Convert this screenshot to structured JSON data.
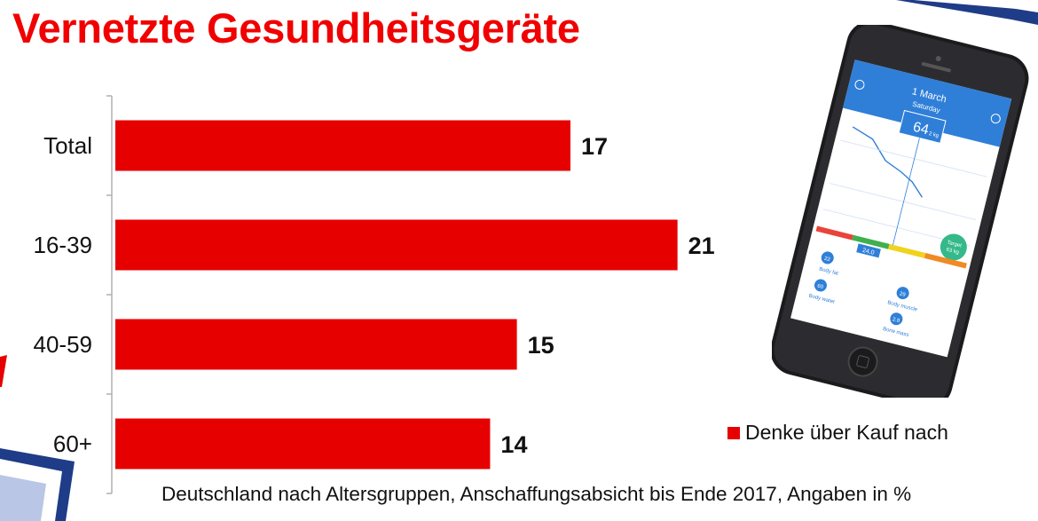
{
  "title": "Vernetzte Gesundheitsgeräte",
  "footnote": "Deutschland nach Altersgruppen, Anschaffungsabsicht bis Ende 2017, Angaben in %",
  "colors": {
    "title": "#f00000",
    "bar": "#e60000",
    "axis": "#b0b0b0"
  },
  "chart_data": {
    "type": "bar",
    "orientation": "horizontal",
    "categories": [
      "Total",
      "16-39",
      "40-59",
      "60+"
    ],
    "series": [
      {
        "name": "Denke über Kauf nach",
        "values": [
          17,
          21,
          15,
          14
        ]
      }
    ],
    "data_labels": [
      "17",
      "21",
      "15",
      "14"
    ],
    "xlim": [
      0,
      23
    ],
    "grid": false,
    "legend": "bottom-right"
  },
  "phone": {
    "date": "1 March",
    "weekday": "Saturday",
    "weight": "64",
    "weight_unit": "2 kg",
    "target_label": "Target",
    "target_value": "63 kg",
    "bmi_value": "24.0",
    "metrics": [
      {
        "label": "Body fat",
        "value": "22"
      },
      {
        "label": "Body water",
        "value": "60"
      },
      {
        "label": "Body muscle",
        "value": "29"
      },
      {
        "label": "Bone mass",
        "value": "2.8"
      }
    ]
  }
}
